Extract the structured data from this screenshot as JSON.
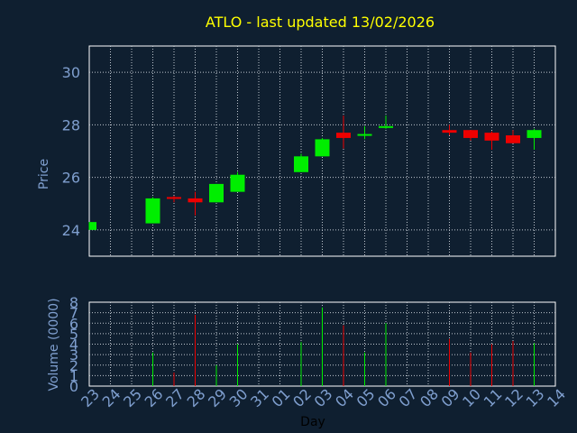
{
  "chart_data": {
    "type": "candlestick",
    "title": "ATLO - last updated 13/02/2026",
    "xlabel": "Day",
    "price_panel": {
      "ylabel": "Price",
      "ylim": [
        23.0,
        31.0
      ],
      "yticks": [
        24,
        26,
        28,
        30
      ],
      "grid": true
    },
    "volume_panel": {
      "ylabel": "Volume (0000)",
      "ylim": [
        0,
        8
      ],
      "yticks": [
        0,
        1,
        2,
        3,
        4,
        5,
        6,
        7,
        8
      ],
      "grid": true
    },
    "x_ticks": [
      "23",
      "24",
      "25",
      "26",
      "27",
      "28",
      "29",
      "30",
      "31",
      "01",
      "02",
      "03",
      "04",
      "05",
      "06",
      "07",
      "08",
      "09",
      "10",
      "11",
      "12",
      "13",
      "14"
    ],
    "candles": [
      {
        "day": "23",
        "open": 24.0,
        "close": 24.3,
        "high": 24.3,
        "low": 24.0,
        "volume": 0
      },
      {
        "day": "26",
        "open": 24.25,
        "close": 25.2,
        "high": 25.25,
        "low": 24.25,
        "volume": 3.2
      },
      {
        "day": "27",
        "open": 25.25,
        "close": 25.2,
        "high": 25.3,
        "low": 25.05,
        "volume": 1.3
      },
      {
        "day": "28",
        "open": 25.2,
        "close": 25.05,
        "high": 25.45,
        "low": 24.55,
        "volume": 6.8
      },
      {
        "day": "29",
        "open": 25.05,
        "close": 25.75,
        "high": 25.75,
        "low": 25.05,
        "volume": 2.0
      },
      {
        "day": "30",
        "open": 25.45,
        "close": 26.1,
        "high": 26.2,
        "low": 25.45,
        "volume": 4.0
      },
      {
        "day": "02",
        "open": 26.2,
        "close": 26.8,
        "high": 26.9,
        "low": 26.2,
        "volume": 4.2
      },
      {
        "day": "03",
        "open": 26.8,
        "close": 27.45,
        "high": 27.5,
        "low": 26.8,
        "volume": 7.5
      },
      {
        "day": "04",
        "open": 27.7,
        "close": 27.5,
        "high": 28.35,
        "low": 27.1,
        "volume": 5.8
      },
      {
        "day": "05",
        "open": 27.6,
        "close": 27.65,
        "high": 27.95,
        "low": 27.45,
        "volume": 3.2
      },
      {
        "day": "06",
        "open": 27.9,
        "close": 27.95,
        "high": 28.35,
        "low": 27.85,
        "volume": 6.0
      },
      {
        "day": "09",
        "open": 27.8,
        "close": 27.7,
        "high": 28.0,
        "low": 27.6,
        "volume": 4.5
      },
      {
        "day": "10",
        "open": 27.8,
        "close": 27.5,
        "high": 27.8,
        "low": 27.4,
        "volume": 3.2
      },
      {
        "day": "11",
        "open": 27.7,
        "close": 27.4,
        "high": 27.75,
        "low": 27.05,
        "volume": 4.0
      },
      {
        "day": "12",
        "open": 27.6,
        "close": 27.3,
        "high": 27.8,
        "low": 27.3,
        "volume": 4.3
      },
      {
        "day": "13",
        "open": 27.5,
        "close": 27.8,
        "high": 27.85,
        "low": 27.05,
        "volume": 4.1
      }
    ],
    "colors": {
      "background": "#0f1f30",
      "up": "#00ee00",
      "down": "#ee0000",
      "title": "#ffff00",
      "axis_text": "#7f9fcf",
      "axis_line": "#ffffff",
      "grid": "#c0c8d0",
      "xlabel": "#000000"
    }
  }
}
